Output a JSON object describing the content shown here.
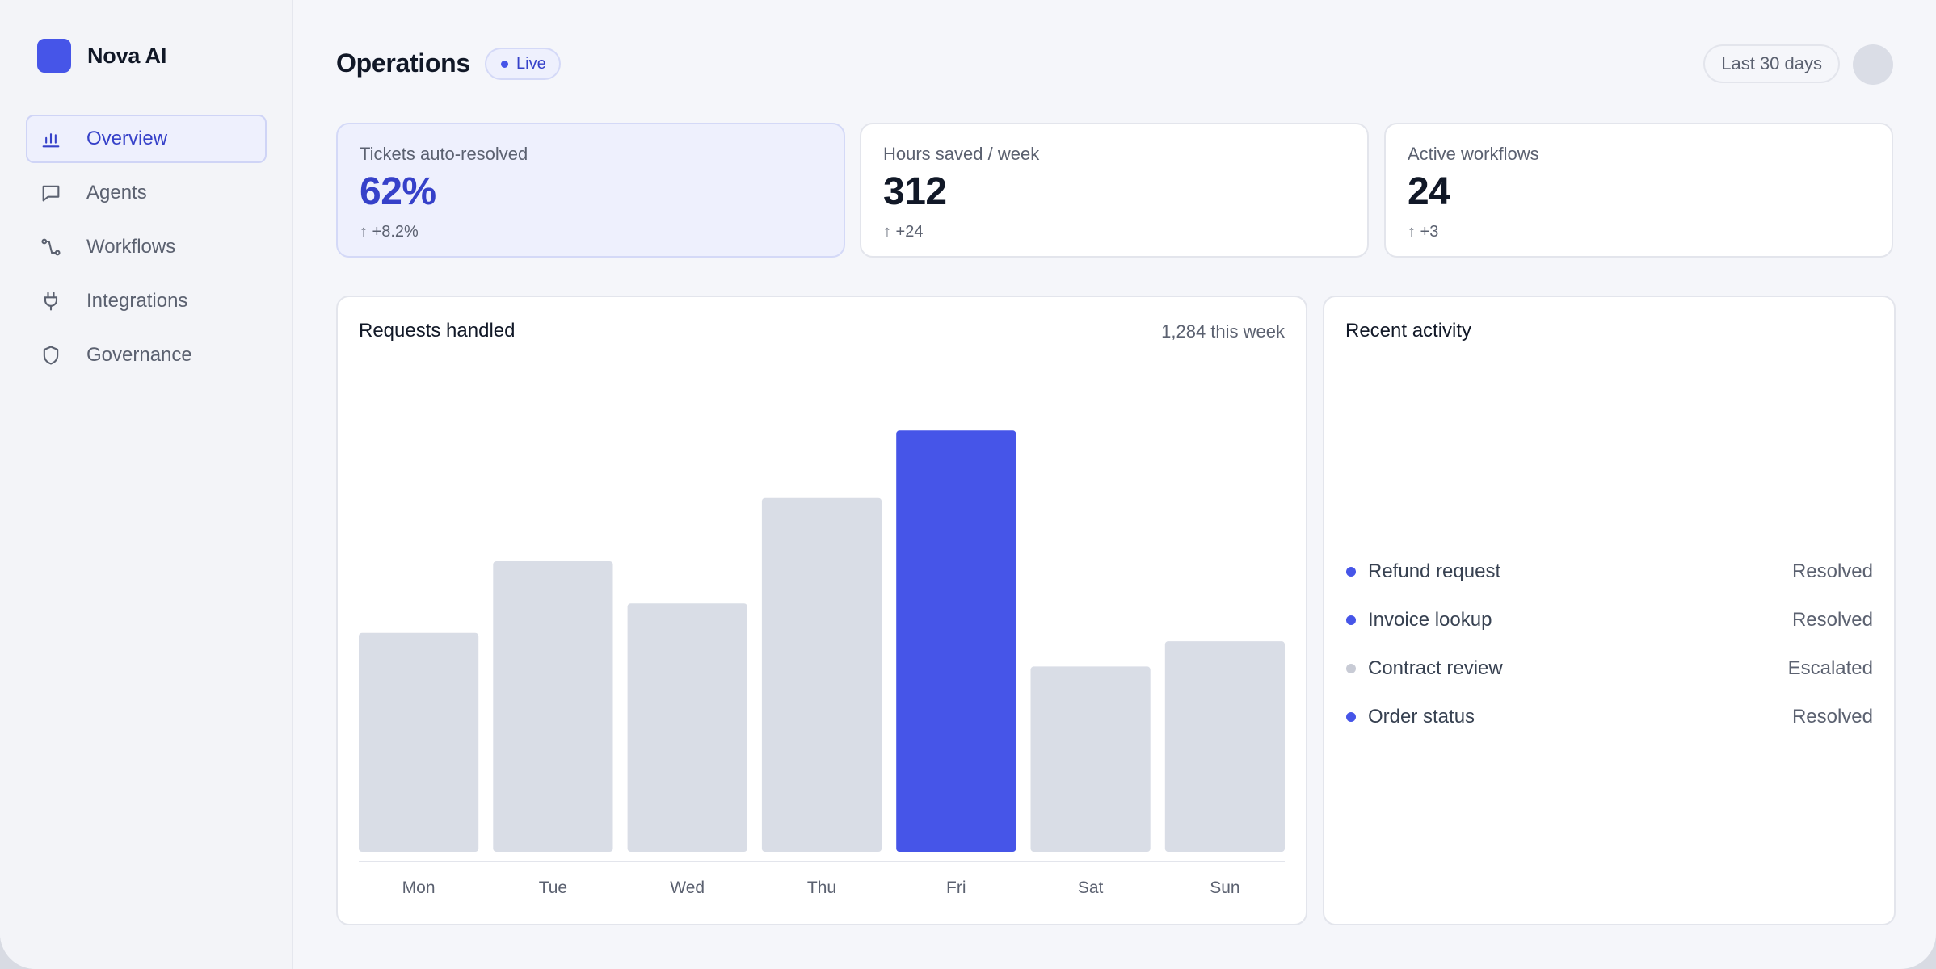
{
  "brand": {
    "name": "Nova AI",
    "accent": "#4655e8"
  },
  "nav": {
    "items": [
      {
        "label": "Overview",
        "icon": "bar-chart-icon",
        "active": true
      },
      {
        "label": "Agents",
        "icon": "message-square-icon",
        "active": false
      },
      {
        "label": "Workflows",
        "icon": "route-icon",
        "active": false
      },
      {
        "label": "Integrations",
        "icon": "plug-icon",
        "active": false
      },
      {
        "label": "Governance",
        "icon": "shield-icon",
        "active": false
      }
    ]
  },
  "header": {
    "title": "Operations",
    "badge": "Live",
    "range": "Last 30 days"
  },
  "kpis": [
    {
      "label": "Tickets auto-resolved",
      "value": "62%",
      "delta": "↑ +8.2%"
    },
    {
      "label": "Hours saved / week",
      "value": "312",
      "delta": "↑ +24"
    },
    {
      "label": "Active workflows",
      "value": "24",
      "delta": "↑ +3"
    }
  ],
  "requests_panel": {
    "title": "Requests handled",
    "meta": "1,284 this week"
  },
  "chart_data": {
    "type": "bar",
    "categories": [
      "Mon",
      "Tue",
      "Wed",
      "Thu",
      "Fri",
      "Sat",
      "Sun"
    ],
    "values": [
      52,
      69,
      59,
      84,
      100,
      44,
      50
    ],
    "highlight_index": 4,
    "ylim": [
      0,
      115
    ],
    "colors": {
      "bar": "#d9dde6",
      "highlight": "#4655e8",
      "axis": "#e3e5ec",
      "tick": "#5b6170"
    },
    "grid": false
  },
  "activity_panel": {
    "title": "Recent activity",
    "items": [
      {
        "name": "Refund request",
        "status": "Resolved",
        "muted": false
      },
      {
        "name": "Invoice lookup",
        "status": "Resolved",
        "muted": false
      },
      {
        "name": "Contract review",
        "status": "Escalated",
        "muted": true
      },
      {
        "name": "Order status",
        "status": "Resolved",
        "muted": false
      }
    ]
  }
}
